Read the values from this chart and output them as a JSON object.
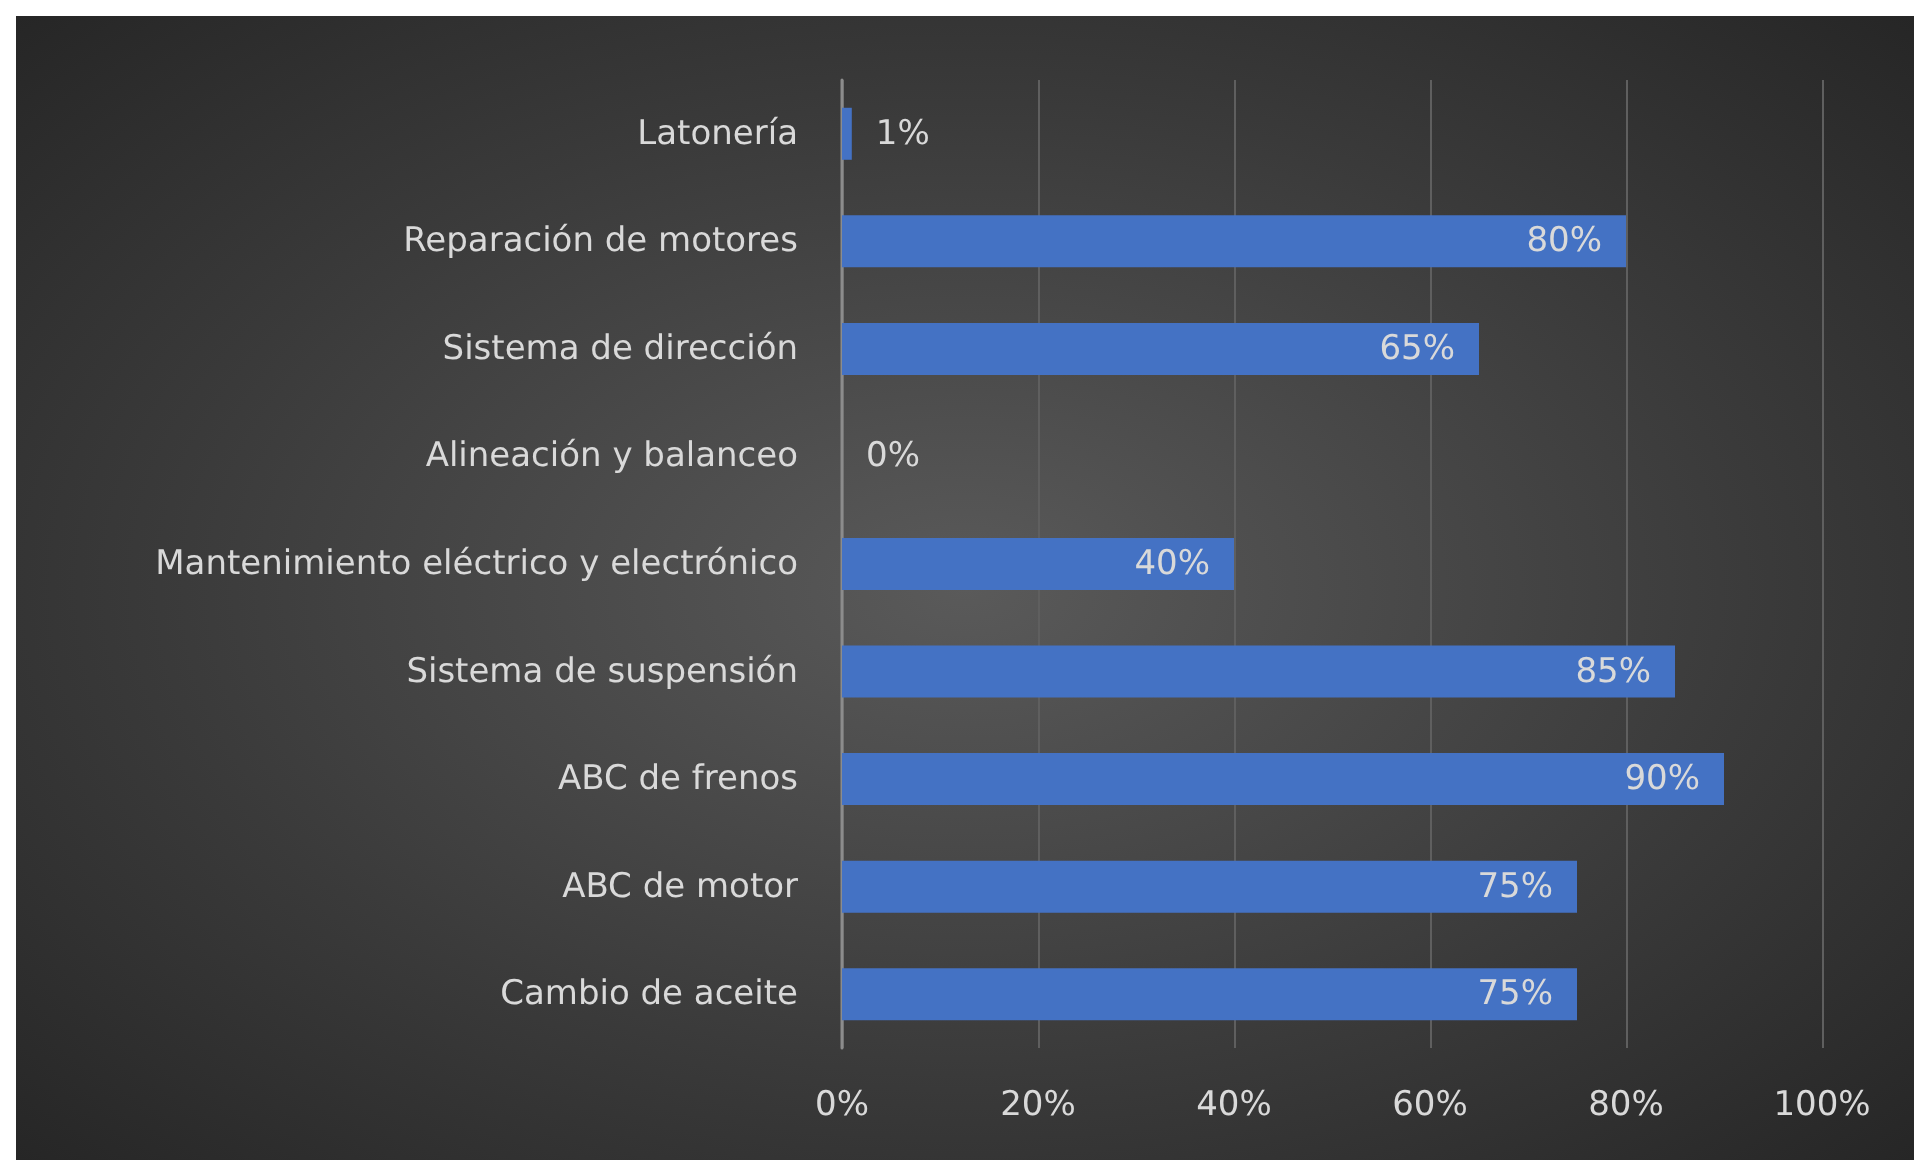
{
  "chart_data": {
    "type": "bar",
    "orientation": "horizontal",
    "categories": [
      "Latonería",
      "Reparación de motores",
      "Sistema de dirección",
      "Alineación y balanceo",
      "Mantenimiento eléctrico y electrónico",
      "Sistema de suspensión",
      "ABC de frenos",
      "ABC de motor",
      "Cambio de aceite"
    ],
    "values": [
      1,
      80,
      65,
      0,
      40,
      85,
      90,
      75,
      75
    ],
    "value_labels": [
      "1%",
      "80%",
      "65%",
      "0%",
      "40%",
      "85%",
      "90%",
      "75%",
      "75%"
    ],
    "color": "#4472c4",
    "xlim": [
      0,
      100
    ],
    "xticks": [
      {
        "value": 0,
        "label": "0%"
      },
      {
        "value": 20,
        "label": "20%"
      },
      {
        "value": 40,
        "label": "40%"
      },
      {
        "value": 60,
        "label": "60%"
      },
      {
        "value": 80,
        "label": "80%"
      },
      {
        "value": 100,
        "label": "100%"
      }
    ],
    "grid": "x"
  }
}
